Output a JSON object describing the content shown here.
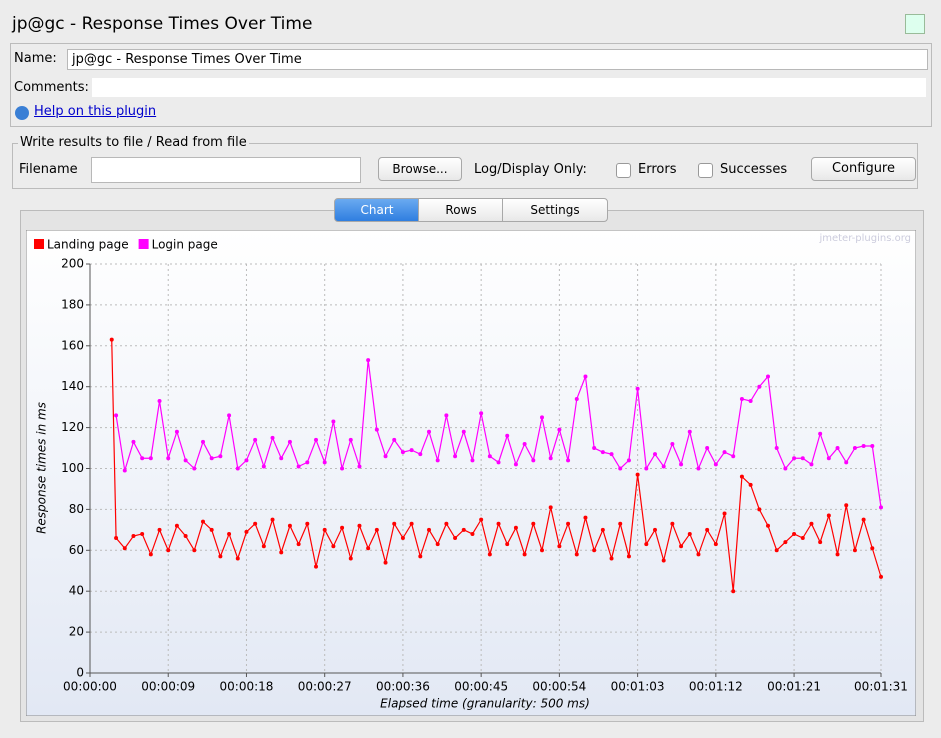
{
  "window": {
    "title": "jp@gc - Response Times Over Time"
  },
  "form": {
    "name_label": "Name:",
    "name_value": "jp@gc - Response Times Over Time",
    "comments_label": "Comments:",
    "help_link": "Help on this plugin"
  },
  "file_group": {
    "legend": "Write results to file / Read from file",
    "filename_label": "Filename",
    "browse": "Browse...",
    "log_label": "Log/Display Only:",
    "errors": "Errors",
    "successes": "Successes",
    "configure": "Configure"
  },
  "tabs": [
    "Chart",
    "Rows",
    "Settings"
  ],
  "chart_data": {
    "type": "line",
    "watermark": "jmeter-plugins.org",
    "xlabel": "Elapsed time (granularity: 500 ms)",
    "ylabel": "Response times in ms",
    "grid": true,
    "legend": "top-left",
    "x": [
      2.5,
      3,
      4,
      5,
      6,
      7,
      8,
      9,
      10,
      11,
      12,
      13,
      14,
      15,
      16,
      17,
      18,
      19,
      20,
      21,
      22,
      23,
      24,
      25,
      26,
      27,
      28,
      29,
      30,
      31,
      32,
      33,
      34,
      35,
      36,
      37,
      38,
      39,
      40,
      41,
      42,
      43,
      44,
      45,
      46,
      47,
      48,
      49,
      50,
      51,
      52,
      53,
      54,
      55,
      56,
      57,
      58,
      59,
      60,
      61,
      62,
      63,
      64,
      65,
      66,
      67,
      68,
      69,
      70,
      71,
      72,
      73,
      74,
      75,
      76,
      77,
      78,
      79,
      80,
      81,
      82,
      83,
      84,
      85,
      86,
      87,
      88,
      89,
      90,
      91
    ],
    "series": [
      {
        "name": "Landing page",
        "color": "#ff0000",
        "values": [
          163,
          66,
          61,
          67,
          68,
          58,
          70,
          60,
          72,
          67,
          60,
          74,
          70,
          57,
          68,
          56,
          69,
          73,
          62,
          75,
          59,
          72,
          63,
          73,
          52,
          70,
          62,
          71,
          56,
          72,
          61,
          70,
          54,
          73,
          66,
          73,
          57,
          70,
          63,
          73,
          66,
          70,
          68,
          75,
          58,
          73,
          63,
          71,
          58,
          73,
          60,
          81,
          62,
          73,
          58,
          76,
          60,
          70,
          56,
          73,
          57,
          97,
          63,
          70,
          55,
          73,
          62,
          68,
          58,
          70,
          63,
          78,
          40,
          96,
          92,
          80,
          72,
          60,
          64,
          68,
          66,
          73,
          64,
          77,
          58,
          82,
          60,
          75,
          61,
          47
        ]
      },
      {
        "name": "Login page",
        "color": "#ff00ff",
        "values": [
          null,
          126,
          99,
          113,
          105,
          105,
          133,
          105,
          118,
          104,
          100,
          113,
          105,
          106,
          126,
          100,
          104,
          114,
          101,
          115,
          105,
          113,
          101,
          103,
          114,
          103,
          123,
          100,
          114,
          101,
          153,
          119,
          106,
          114,
          108,
          109,
          107,
          118,
          104,
          126,
          106,
          118,
          104,
          127,
          106,
          103,
          116,
          102,
          112,
          104,
          125,
          105,
          119,
          104,
          134,
          145,
          110,
          108,
          107,
          100,
          104,
          139,
          100,
          107,
          101,
          112,
          102,
          118,
          100,
          110,
          102,
          108,
          106,
          134,
          133,
          140,
          145,
          110,
          100,
          105,
          105,
          102,
          117,
          105,
          110,
          103,
          110,
          111,
          111,
          81
        ]
      }
    ],
    "xlim": [
      0,
      91
    ],
    "xticks": [
      {
        "value": 0,
        "label": "00:00:00"
      },
      {
        "value": 9,
        "label": "00:00:09"
      },
      {
        "value": 18,
        "label": "00:00:18"
      },
      {
        "value": 27,
        "label": "00:00:27"
      },
      {
        "value": 36,
        "label": "00:00:36"
      },
      {
        "value": 45,
        "label": "00:00:45"
      },
      {
        "value": 54,
        "label": "00:00:54"
      },
      {
        "value": 63,
        "label": "00:01:03"
      },
      {
        "value": 72,
        "label": "00:01:12"
      },
      {
        "value": 81,
        "label": "00:01:21"
      },
      {
        "value": 91,
        "label": "00:01:31"
      }
    ],
    "ylim": [
      0,
      200
    ],
    "yticks": [
      0,
      20,
      40,
      60,
      80,
      100,
      120,
      140,
      160,
      180,
      200
    ]
  }
}
